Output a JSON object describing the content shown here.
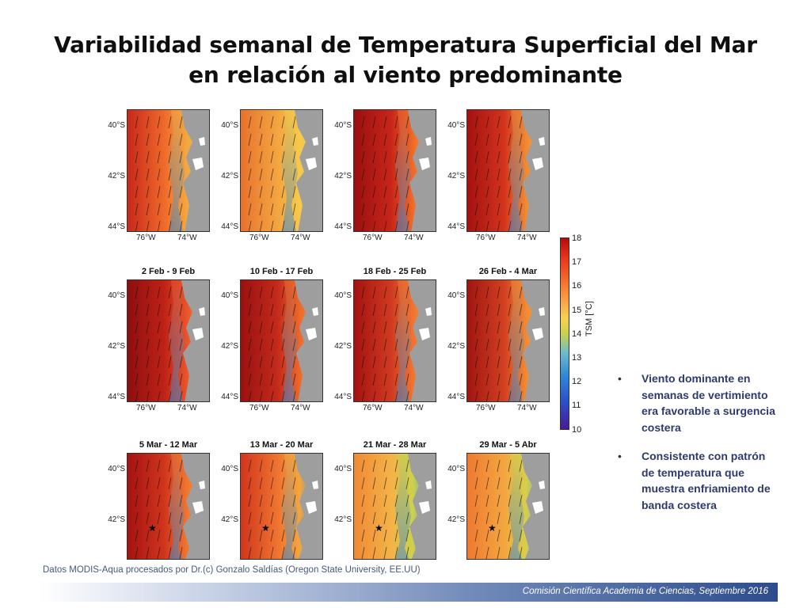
{
  "title": {
    "line1": "Variabilidad semanal de Temperatura Superficial del Mar",
    "line2": "en relación al viento predominante"
  },
  "panels": [
    {
      "label": "",
      "ylabels": [
        "40°S",
        "42°S",
        "44°S"
      ],
      "xlabels": [
        "76°W",
        "74°W"
      ]
    },
    {
      "label": "",
      "ylabels": [
        "40°S",
        "42°S",
        "44°S"
      ],
      "xlabels": [
        "76°W",
        "74°W"
      ]
    },
    {
      "label": "",
      "ylabels": [
        "40°S",
        "42°S",
        "44°S"
      ],
      "xlabels": [
        "76°W",
        "74°W"
      ]
    },
    {
      "label": "",
      "ylabels": [
        "40°S",
        "42°S",
        "44°S"
      ],
      "xlabels": [
        "76°W",
        "74°W"
      ]
    },
    {
      "label": "2 Feb - 9 Feb",
      "ylabels": [
        "40°S",
        "42°S",
        "44°S"
      ],
      "xlabels": [
        "76°W",
        "74°W"
      ]
    },
    {
      "label": "10 Feb - 17 Feb",
      "ylabels": [
        "40°S",
        "42°S",
        "44°S"
      ],
      "xlabels": [
        "76°W",
        "74°W"
      ]
    },
    {
      "label": "18 Feb - 25 Feb",
      "ylabels": [
        "40°S",
        "42°S",
        "44°S"
      ],
      "xlabels": [
        "76°W",
        "74°W"
      ]
    },
    {
      "label": "26 Feb - 4 Mar",
      "ylabels": [
        "40°S",
        "42°S",
        "44°S"
      ],
      "xlabels": [
        "76°W",
        "74°W"
      ]
    },
    {
      "label": "5 Mar - 12 Mar",
      "ylabels": [
        "40°S",
        "42°S"
      ],
      "xlabels": []
    },
    {
      "label": "13 Mar - 20 Mar",
      "ylabels": [
        "40°S",
        "42°S"
      ],
      "xlabels": []
    },
    {
      "label": "21 Mar - 28 Mar",
      "ylabels": [
        "40°S",
        "42°S"
      ],
      "xlabels": []
    },
    {
      "label": "29 Mar - 5 Abr",
      "ylabels": [
        "40°S",
        "42°S"
      ],
      "xlabels": []
    }
  ],
  "colorbar": {
    "title": "TSM [°C]",
    "ticks": [
      "18",
      "17",
      "16",
      "15",
      "14",
      "13",
      "12",
      "11",
      "10"
    ],
    "min": 10,
    "max": 18
  },
  "bullets": [
    "Viento dominante en semanas de vertimiento era favorable a surgencia costera",
    "Consistente con patrón de temperatura que muestra enfriamiento de banda costera"
  ],
  "source": "Datos MODIS-Aqua procesados por Dr.(c) Gonzalo Saldías (Oregon State University, EE.UU)",
  "footer": "Comisión Científica Academia de Ciencias, Septiembre 2016"
}
